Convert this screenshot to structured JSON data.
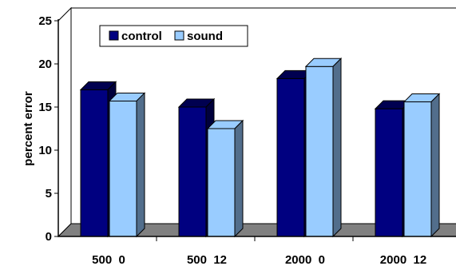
{
  "chart_data": {
    "type": "bar",
    "style": "3d-clustered-column",
    "title": "",
    "xlabel": "",
    "ylabel": "percent error",
    "ylim": [
      0,
      25
    ],
    "yticks": [
      "0",
      "5",
      "10",
      "15",
      "20",
      "25"
    ],
    "grid": false,
    "legend_position": "top-left",
    "categories": [
      "500  0",
      "500  12",
      "2000  0",
      "2000  12"
    ],
    "series": [
      {
        "name": "control",
        "values": [
          17.0,
          15.0,
          18.3,
          14.8
        ],
        "color": "#000080",
        "top_color": "#000050",
        "side_color": "#00003c"
      },
      {
        "name": "sound",
        "values": [
          15.7,
          12.5,
          19.7,
          15.6
        ],
        "color": "#99ccff",
        "top_color": "#99ccff",
        "side_color": "#526e8c"
      }
    ]
  }
}
